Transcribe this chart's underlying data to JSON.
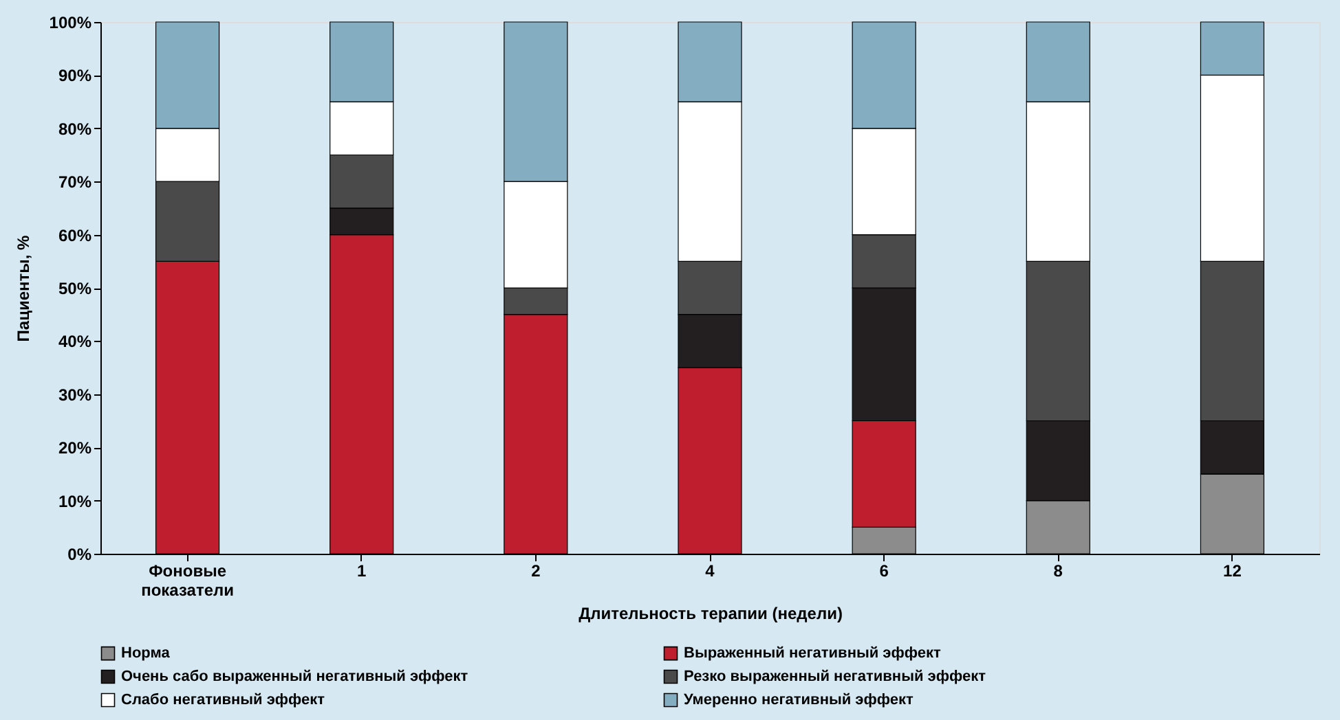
{
  "chart_data": {
    "type": "bar",
    "stacked": true,
    "xlabel": "Длительность терапии (недели)",
    "ylabel": "Пациенты, %",
    "categories": [
      "Фоновые показатели",
      "1",
      "2",
      "4",
      "6",
      "8",
      "12"
    ],
    "series": [
      {
        "name": "Норма",
        "color": "#8c8c8c",
        "values": [
          0,
          0,
          0,
          0,
          5,
          10,
          15
        ]
      },
      {
        "name": "Выраженный негативный эффект",
        "color": "#be1e2d",
        "values": [
          55,
          60,
          45,
          35,
          20,
          0,
          0
        ]
      },
      {
        "name": "Очень сабо выраженный негативный эффект",
        "color": "#231f20",
        "values": [
          0,
          5,
          0,
          10,
          25,
          15,
          10
        ]
      },
      {
        "name": "Резко выраженный негативный эффект",
        "color": "#4a4a4a",
        "values": [
          15,
          10,
          5,
          10,
          10,
          30,
          30
        ]
      },
      {
        "name": "Слабо негативный эффект",
        "color": "#ffffff",
        "values": [
          10,
          10,
          20,
          30,
          20,
          30,
          35
        ]
      },
      {
        "name": "Умеренно негативный эффект",
        "color": "#84adc1",
        "values": [
          20,
          15,
          30,
          15,
          20,
          15,
          10
        ]
      }
    ],
    "ylim": [
      0,
      100
    ],
    "yticks": [
      {
        "value": 0,
        "label": "0%"
      },
      {
        "value": 10,
        "label": "10%"
      },
      {
        "value": 20,
        "label": "20%"
      },
      {
        "value": 30,
        "label": "30%"
      },
      {
        "value": 40,
        "label": "40%"
      },
      {
        "value": 50,
        "label": "50%"
      },
      {
        "value": 60,
        "label": "60%"
      },
      {
        "value": 70,
        "label": "70%"
      },
      {
        "value": 80,
        "label": "80%"
      },
      {
        "value": 90,
        "label": "90%"
      },
      {
        "value": 100,
        "label": "100%"
      }
    ],
    "grid": false,
    "legend": "bottom"
  }
}
